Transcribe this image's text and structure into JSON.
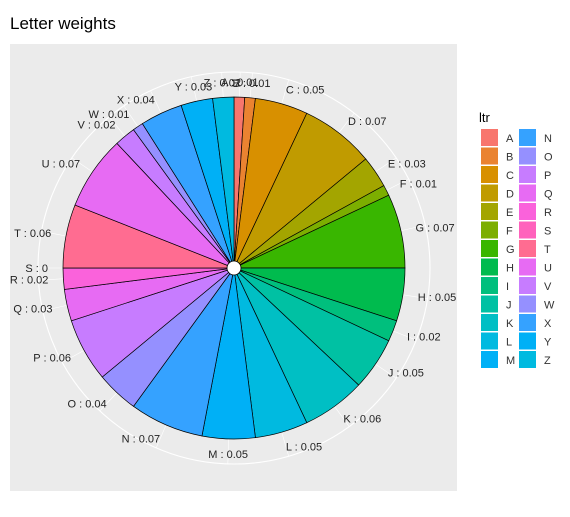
{
  "chart_data": {
    "type": "pie",
    "title": "Letter weights",
    "categories": [
      "A",
      "B",
      "C",
      "D",
      "E",
      "F",
      "G",
      "H",
      "I",
      "J",
      "K",
      "L",
      "M",
      "N",
      "O",
      "P",
      "Q",
      "R",
      "S",
      "T",
      "U",
      "V",
      "W",
      "X",
      "Y",
      "Z"
    ],
    "values": [
      0.01,
      0.01,
      0.05,
      0.07,
      0.03,
      0.01,
      0.07,
      0.05,
      0.02,
      0.05,
      0.06,
      0.05,
      0.05,
      0.07,
      0.04,
      0.06,
      0.03,
      0.02,
      0.0,
      0.06,
      0.07,
      0.02,
      0.01,
      0.04,
      0.03,
      0.02
    ],
    "slice_labels": [
      "A : 0.01",
      "B : 0.01",
      "C : 0.05",
      "D : 0.07",
      "E : 0.03",
      "F : 0.01",
      "G : 0.07",
      "H : 0.05",
      "I : 0.02",
      "J : 0.05",
      "K : 0.06",
      "L : 0.05",
      "M : 0.05",
      "N : 0.07",
      "O : 0.04",
      "P : 0.06",
      "Q : 0.03",
      "R : 0.02",
      "S : 0",
      "T : 0.06",
      "U : 0.07",
      "V : 0.02",
      "W : 0.01",
      "X : 0.04",
      "Y : 0.03",
      "Z : 0.02"
    ],
    "colors": [
      "#F8766D",
      "#EA8331",
      "#D89000",
      "#C09B00",
      "#A3A500",
      "#7CAE00",
      "#39B600",
      "#00BB4E",
      "#00BF7D",
      "#00C1A3",
      "#00BFC4",
      "#00BAE0",
      "#00B0F6",
      "#35A2FF",
      "#9590FF",
      "#C77CFF",
      "#E76BF3",
      "#FA62DB",
      "#FF62BC",
      "#FF6C91",
      "#E76BF3",
      "#C77CFF",
      "#9590FF",
      "#35A2FF",
      "#00B0F6",
      "#00BAE0"
    ],
    "legend": {
      "title": "ltr",
      "position": "right",
      "entries": [
        "A",
        "B",
        "C",
        "D",
        "E",
        "F",
        "G",
        "H",
        "I",
        "J",
        "K",
        "L",
        "M",
        "N",
        "O",
        "P",
        "Q",
        "R",
        "S",
        "T",
        "U",
        "V",
        "W",
        "X",
        "Y",
        "Z"
      ],
      "colors": [
        "#F8766D",
        "#EA8331",
        "#D89000",
        "#C09B00",
        "#A3A500",
        "#7CAE00",
        "#39B600",
        "#00BB4E",
        "#00BF7D",
        "#00C1A3",
        "#00BFC4",
        "#00BAE0",
        "#00B0F6",
        "#35A2FF",
        "#9590FF",
        "#C77CFF",
        "#E76BF3",
        "#FA62DB",
        "#FF62BC",
        "#FF6C91",
        "#E76BF3",
        "#C77CFF",
        "#9590FF",
        "#35A2FF",
        "#00B0F6",
        "#00BAE0"
      ]
    },
    "grid": true,
    "panel_background": "#EBEBEB",
    "grid_color": "#FFFFFF"
  }
}
